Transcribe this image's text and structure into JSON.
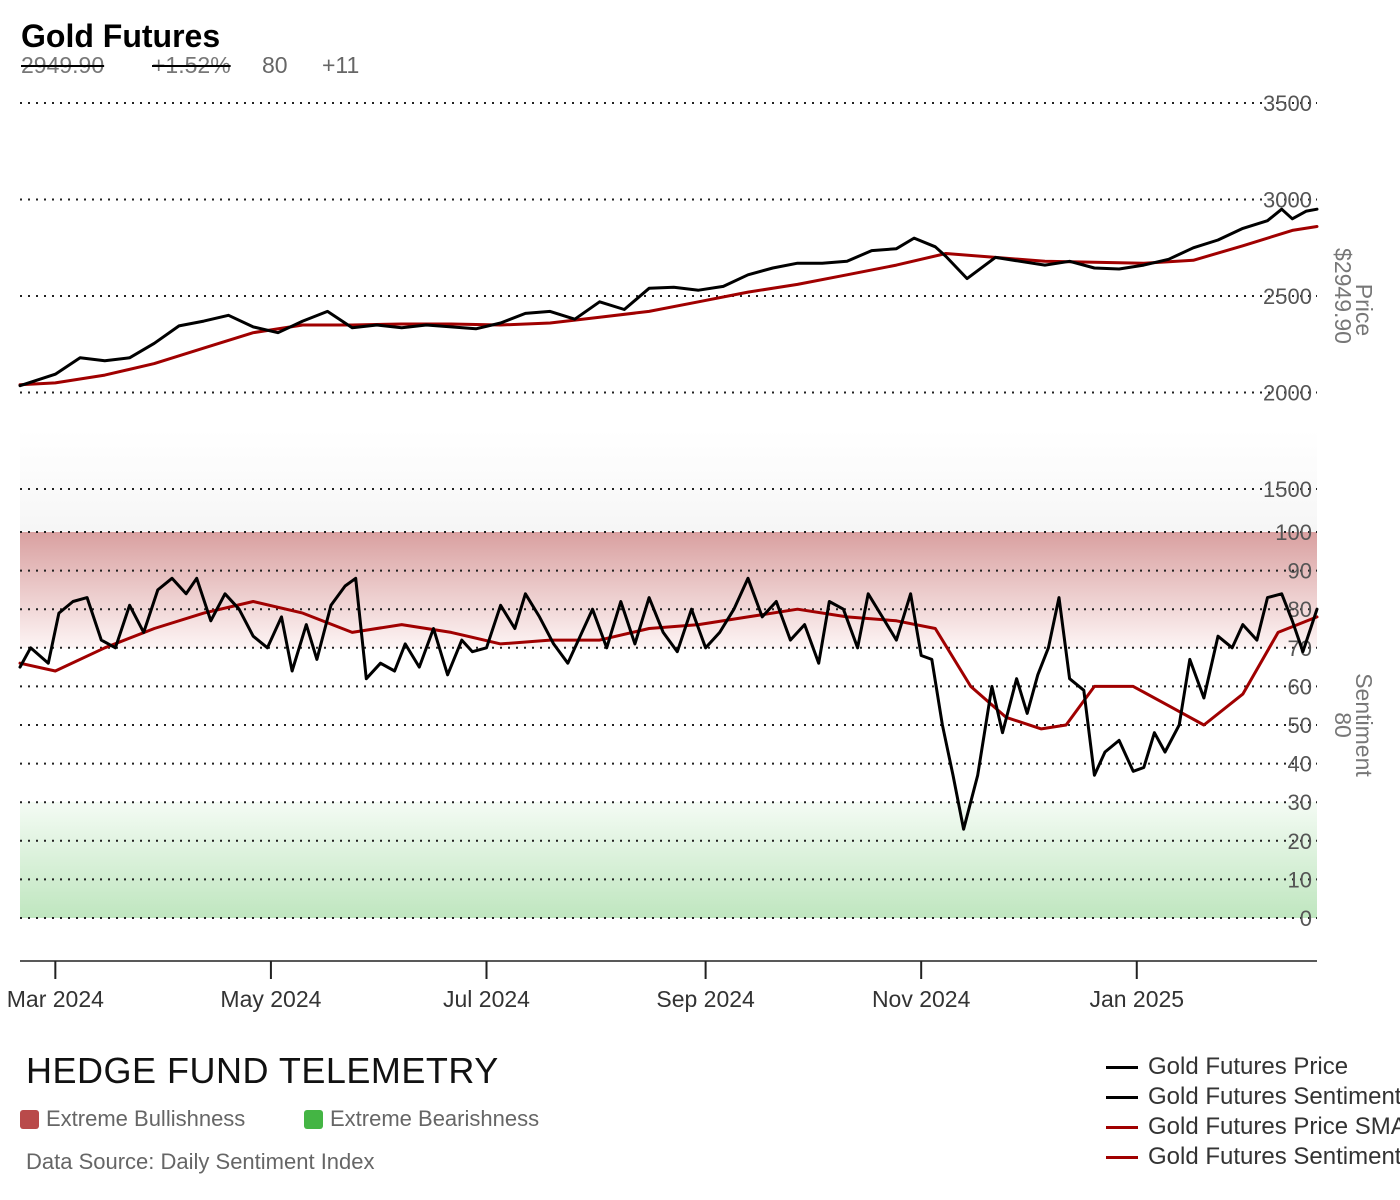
{
  "header": {
    "title": "Gold Futures",
    "price": "2949.90",
    "change": "+1.52%",
    "sentiment": "80",
    "sentiment_change": "+11"
  },
  "footer": {
    "brand": "HEDGE FUND TELEMETRY",
    "zone_legend": [
      {
        "label": "Extreme Bullishness",
        "color": "#b94a4a"
      },
      {
        "label": "Extreme Bearishness",
        "color": "#44b544"
      }
    ],
    "source": "Data Source: Daily Sentiment Index"
  },
  "legend": [
    {
      "label": "Gold Futures Price",
      "color": "#000000"
    },
    {
      "label": "Gold Futures Sentiment",
      "color": "#000000"
    },
    {
      "label": "Gold Futures Price SMA",
      "color": "#a00000"
    },
    {
      "label": "Gold Futures Sentiment SMA",
      "color": "#a00000"
    }
  ],
  "chart_data": {
    "type": "line",
    "x_ticks": [
      "Mar 2024",
      "May 2024",
      "Jul 2024",
      "Sep 2024",
      "Nov 2024",
      "Jan 2025"
    ],
    "x_range": [
      "2024-02-20",
      "2025-02-21"
    ],
    "price_axis": {
      "label": "Price",
      "current_value_label": "$2949.90",
      "ticks": [
        1500,
        2000,
        2500,
        3000,
        3500
      ],
      "range": [
        1500,
        3500
      ]
    },
    "sentiment_axis": {
      "label": "Sentiment",
      "current_value_label": "80",
      "ticks": [
        0,
        10,
        20,
        30,
        40,
        50,
        60,
        70,
        80,
        90,
        100
      ],
      "range": [
        0,
        100
      ]
    },
    "zones": [
      {
        "label": "Extreme Bullishness",
        "from": 70,
        "to": 100,
        "color": "#c84a4a"
      },
      {
        "label": "Extreme Bearishness",
        "from": 0,
        "to": 30,
        "color": "#4ab54a"
      }
    ],
    "grid": true,
    "legend_position": "bottom-right",
    "series": [
      {
        "name": "Gold Futures Price",
        "axis": "price",
        "color": "#000000",
        "points": [
          [
            "2024-02-20",
            2035
          ],
          [
            "2024-03-01",
            2095
          ],
          [
            "2024-03-08",
            2180
          ],
          [
            "2024-03-15",
            2165
          ],
          [
            "2024-03-22",
            2180
          ],
          [
            "2024-03-29",
            2255
          ],
          [
            "2024-04-05",
            2345
          ],
          [
            "2024-04-12",
            2370
          ],
          [
            "2024-04-19",
            2400
          ],
          [
            "2024-04-26",
            2340
          ],
          [
            "2024-05-03",
            2310
          ],
          [
            "2024-05-10",
            2370
          ],
          [
            "2024-05-17",
            2420
          ],
          [
            "2024-05-24",
            2335
          ],
          [
            "2024-05-31",
            2350
          ],
          [
            "2024-06-07",
            2335
          ],
          [
            "2024-06-14",
            2350
          ],
          [
            "2024-06-21",
            2340
          ],
          [
            "2024-06-28",
            2330
          ],
          [
            "2024-07-05",
            2360
          ],
          [
            "2024-07-12",
            2410
          ],
          [
            "2024-07-19",
            2420
          ],
          [
            "2024-07-26",
            2380
          ],
          [
            "2024-08-02",
            2470
          ],
          [
            "2024-08-09",
            2430
          ],
          [
            "2024-08-16",
            2540
          ],
          [
            "2024-08-23",
            2545
          ],
          [
            "2024-08-30",
            2530
          ],
          [
            "2024-09-06",
            2550
          ],
          [
            "2024-09-13",
            2610
          ],
          [
            "2024-09-20",
            2645
          ],
          [
            "2024-09-27",
            2670
          ],
          [
            "2024-10-04",
            2670
          ],
          [
            "2024-10-11",
            2680
          ],
          [
            "2024-10-18",
            2735
          ],
          [
            "2024-10-25",
            2745
          ],
          [
            "2024-10-30",
            2800
          ],
          [
            "2024-11-05",
            2755
          ],
          [
            "2024-11-08",
            2705
          ],
          [
            "2024-11-14",
            2590
          ],
          [
            "2024-11-22",
            2700
          ],
          [
            "2024-11-29",
            2680
          ],
          [
            "2024-12-06",
            2660
          ],
          [
            "2024-12-13",
            2680
          ],
          [
            "2024-12-20",
            2645
          ],
          [
            "2024-12-27",
            2640
          ],
          [
            "2025-01-03",
            2660
          ],
          [
            "2025-01-10",
            2690
          ],
          [
            "2025-01-17",
            2750
          ],
          [
            "2025-01-24",
            2790
          ],
          [
            "2025-01-31",
            2850
          ],
          [
            "2025-02-07",
            2890
          ],
          [
            "2025-02-11",
            2950
          ],
          [
            "2025-02-14",
            2900
          ],
          [
            "2025-02-18",
            2940
          ],
          [
            "2025-02-21",
            2949.9
          ]
        ]
      },
      {
        "name": "Gold Futures Sentiment",
        "axis": "sentiment",
        "color": "#000000",
        "points": [
          [
            "2024-02-20",
            65
          ],
          [
            "2024-02-23",
            70
          ],
          [
            "2024-02-28",
            66
          ],
          [
            "2024-03-02",
            79
          ],
          [
            "2024-03-06",
            82
          ],
          [
            "2024-03-10",
            83
          ],
          [
            "2024-03-14",
            72
          ],
          [
            "2024-03-18",
            70
          ],
          [
            "2024-03-22",
            81
          ],
          [
            "2024-03-26",
            74
          ],
          [
            "2024-03-30",
            85
          ],
          [
            "2024-04-03",
            88
          ],
          [
            "2024-04-07",
            84
          ],
          [
            "2024-04-10",
            88
          ],
          [
            "2024-04-14",
            77
          ],
          [
            "2024-04-18",
            84
          ],
          [
            "2024-04-22",
            80
          ],
          [
            "2024-04-26",
            73
          ],
          [
            "2024-04-30",
            70
          ],
          [
            "2024-05-04",
            78
          ],
          [
            "2024-05-07",
            64
          ],
          [
            "2024-05-11",
            76
          ],
          [
            "2024-05-14",
            67
          ],
          [
            "2024-05-18",
            81
          ],
          [
            "2024-05-22",
            86
          ],
          [
            "2024-05-25",
            88
          ],
          [
            "2024-05-28",
            62
          ],
          [
            "2024-06-01",
            66
          ],
          [
            "2024-06-05",
            64
          ],
          [
            "2024-06-08",
            71
          ],
          [
            "2024-06-12",
            65
          ],
          [
            "2024-06-16",
            75
          ],
          [
            "2024-06-20",
            63
          ],
          [
            "2024-06-24",
            72
          ],
          [
            "2024-06-27",
            69
          ],
          [
            "2024-07-01",
            70
          ],
          [
            "2024-07-05",
            81
          ],
          [
            "2024-07-09",
            75
          ],
          [
            "2024-07-12",
            84
          ],
          [
            "2024-07-16",
            78
          ],
          [
            "2024-07-20",
            71
          ],
          [
            "2024-07-24",
            66
          ],
          [
            "2024-07-27",
            72
          ],
          [
            "2024-07-31",
            80
          ],
          [
            "2024-08-04",
            70
          ],
          [
            "2024-08-08",
            82
          ],
          [
            "2024-08-12",
            71
          ],
          [
            "2024-08-16",
            83
          ],
          [
            "2024-08-20",
            74
          ],
          [
            "2024-08-24",
            69
          ],
          [
            "2024-08-28",
            80
          ],
          [
            "2024-09-01",
            70
          ],
          [
            "2024-09-05",
            74
          ],
          [
            "2024-09-09",
            80
          ],
          [
            "2024-09-13",
            88
          ],
          [
            "2024-09-17",
            78
          ],
          [
            "2024-09-21",
            82
          ],
          [
            "2024-09-25",
            72
          ],
          [
            "2024-09-29",
            76
          ],
          [
            "2024-10-03",
            66
          ],
          [
            "2024-10-06",
            82
          ],
          [
            "2024-10-10",
            80
          ],
          [
            "2024-10-14",
            70
          ],
          [
            "2024-10-17",
            84
          ],
          [
            "2024-10-21",
            78
          ],
          [
            "2024-10-25",
            72
          ],
          [
            "2024-10-29",
            84
          ],
          [
            "2024-11-01",
            68
          ],
          [
            "2024-11-04",
            67
          ],
          [
            "2024-11-07",
            50
          ],
          [
            "2024-11-10",
            37
          ],
          [
            "2024-11-13",
            23
          ],
          [
            "2024-11-17",
            37
          ],
          [
            "2024-11-21",
            60
          ],
          [
            "2024-11-24",
            48
          ],
          [
            "2024-11-28",
            62
          ],
          [
            "2024-12-01",
            53
          ],
          [
            "2024-12-04",
            63
          ],
          [
            "2024-12-07",
            70
          ],
          [
            "2024-12-10",
            83
          ],
          [
            "2024-12-13",
            62
          ],
          [
            "2024-12-17",
            59
          ],
          [
            "2024-12-20",
            37
          ],
          [
            "2024-12-23",
            43
          ],
          [
            "2024-12-27",
            46
          ],
          [
            "2024-12-31",
            38
          ],
          [
            "2025-01-03",
            39
          ],
          [
            "2025-01-06",
            48
          ],
          [
            "2025-01-09",
            43
          ],
          [
            "2025-01-13",
            50
          ],
          [
            "2025-01-16",
            67
          ],
          [
            "2025-01-20",
            57
          ],
          [
            "2025-01-24",
            73
          ],
          [
            "2025-01-28",
            70
          ],
          [
            "2025-01-31",
            76
          ],
          [
            "2025-02-04",
            72
          ],
          [
            "2025-02-07",
            83
          ],
          [
            "2025-02-11",
            84
          ],
          [
            "2025-02-14",
            77
          ],
          [
            "2025-02-17",
            69
          ],
          [
            "2025-02-21",
            80
          ]
        ]
      },
      {
        "name": "Gold Futures Price SMA",
        "axis": "price",
        "color": "#a00000",
        "points": [
          [
            "2024-02-20",
            2040
          ],
          [
            "2024-03-01",
            2050
          ],
          [
            "2024-03-15",
            2090
          ],
          [
            "2024-03-29",
            2150
          ],
          [
            "2024-04-12",
            2230
          ],
          [
            "2024-04-26",
            2310
          ],
          [
            "2024-05-10",
            2350
          ],
          [
            "2024-05-24",
            2350
          ],
          [
            "2024-06-07",
            2355
          ],
          [
            "2024-06-21",
            2355
          ],
          [
            "2024-07-05",
            2350
          ],
          [
            "2024-07-19",
            2360
          ],
          [
            "2024-08-02",
            2390
          ],
          [
            "2024-08-16",
            2420
          ],
          [
            "2024-08-30",
            2470
          ],
          [
            "2024-09-13",
            2520
          ],
          [
            "2024-09-27",
            2560
          ],
          [
            "2024-10-11",
            2610
          ],
          [
            "2024-10-25",
            2660
          ],
          [
            "2024-11-08",
            2720
          ],
          [
            "2024-11-22",
            2700
          ],
          [
            "2024-12-06",
            2680
          ],
          [
            "2024-12-20",
            2675
          ],
          [
            "2025-01-03",
            2670
          ],
          [
            "2025-01-17",
            2685
          ],
          [
            "2025-01-31",
            2760
          ],
          [
            "2025-02-14",
            2840
          ],
          [
            "2025-02-21",
            2860
          ]
        ]
      },
      {
        "name": "Gold Futures Sentiment SMA",
        "axis": "sentiment",
        "color": "#a00000",
        "points": [
          [
            "2024-02-20",
            66
          ],
          [
            "2024-03-01",
            64
          ],
          [
            "2024-03-15",
            70
          ],
          [
            "2024-03-29",
            75
          ],
          [
            "2024-04-12",
            79
          ],
          [
            "2024-04-26",
            82
          ],
          [
            "2024-05-10",
            79
          ],
          [
            "2024-05-24",
            74
          ],
          [
            "2024-06-07",
            76
          ],
          [
            "2024-06-21",
            74
          ],
          [
            "2024-07-05",
            71
          ],
          [
            "2024-07-19",
            72
          ],
          [
            "2024-08-02",
            72
          ],
          [
            "2024-08-16",
            75
          ],
          [
            "2024-08-30",
            76
          ],
          [
            "2024-09-13",
            78
          ],
          [
            "2024-09-27",
            80
          ],
          [
            "2024-10-11",
            78
          ],
          [
            "2024-10-25",
            77
          ],
          [
            "2024-11-05",
            75
          ],
          [
            "2024-11-15",
            60
          ],
          [
            "2024-11-25",
            52
          ],
          [
            "2024-12-05",
            49
          ],
          [
            "2024-12-12",
            50
          ],
          [
            "2024-12-20",
            60
          ],
          [
            "2024-12-31",
            60
          ],
          [
            "2025-01-10",
            55
          ],
          [
            "2025-01-20",
            50
          ],
          [
            "2025-01-31",
            58
          ],
          [
            "2025-02-10",
            74
          ],
          [
            "2025-02-21",
            78
          ]
        ]
      }
    ]
  }
}
